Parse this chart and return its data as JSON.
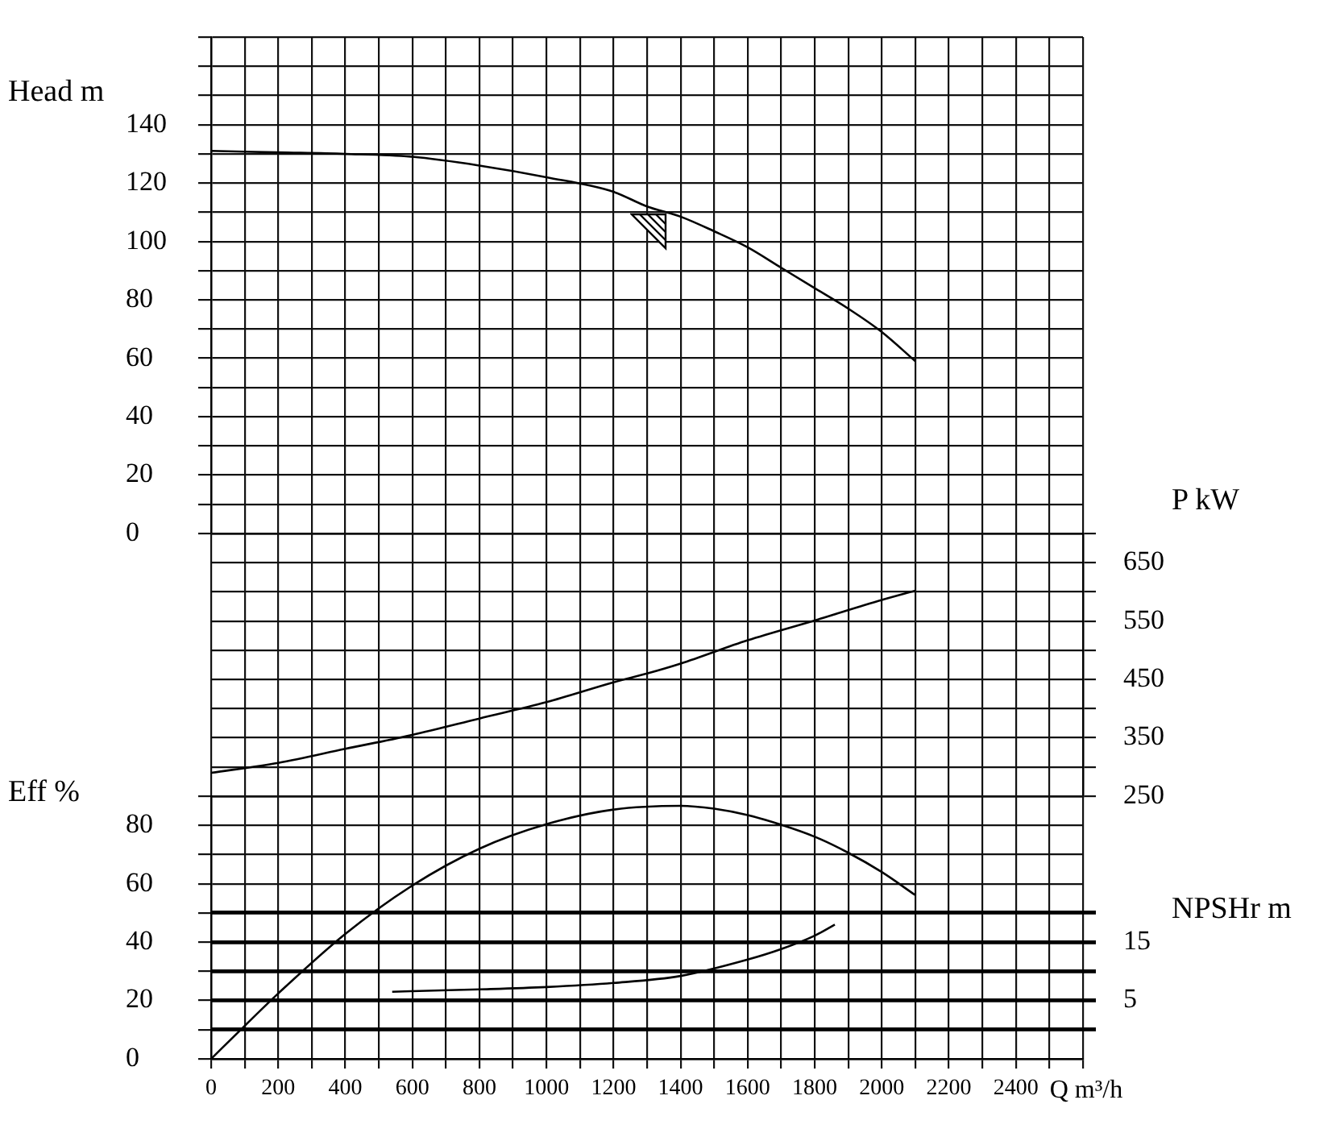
{
  "chart_data": [
    {
      "type": "line",
      "ylabel": "Head m",
      "xlim": [
        0,
        2600
      ],
      "xticks": [
        0,
        {
          "value": 100,
          "label": null
        },
        200,
        {
          "value": 300,
          "label": null
        },
        400,
        {
          "value": 500,
          "label": null
        },
        600,
        {
          "value": 700,
          "label": null
        },
        800,
        {
          "value": 900,
          "label": null
        },
        1000,
        {
          "value": 1100,
          "label": null
        },
        1200,
        {
          "value": 1300,
          "label": null
        },
        1400,
        {
          "value": 1500,
          "label": null
        },
        1600,
        {
          "value": 1700,
          "label": null
        },
        1800,
        {
          "value": 1900,
          "label": null
        },
        2000,
        {
          "value": 2100,
          "label": null
        },
        2200,
        {
          "value": 2300,
          "label": null
        },
        2400,
        {
          "value": 2500,
          "label": null
        },
        {
          "value": 2600,
          "label": null
        }
      ],
      "ylim": [
        0,
        170
      ],
      "yticks": [
        0,
        {
          "value": 10,
          "label": null
        },
        20,
        {
          "value": 30,
          "label": null
        },
        40,
        {
          "value": 50,
          "label": null
        },
        60,
        {
          "value": 70,
          "label": null
        },
        80,
        {
          "value": 90,
          "label": null
        },
        100,
        {
          "value": 110,
          "label": null
        },
        120,
        {
          "value": 130,
          "label": null
        },
        140,
        {
          "value": 150,
          "label": null
        },
        {
          "value": 160,
          "label": null
        },
        {
          "value": 170,
          "label": null
        }
      ],
      "series": [
        {
          "color": "#000000",
          "x": [
            0,
            200,
            400,
            600,
            800,
            1000,
            1200,
            1300,
            1400,
            1500,
            1600,
            1700,
            1800,
            1900,
            2000,
            2100
          ],
          "values": [
            131,
            130.5,
            130,
            129,
            126,
            122,
            117,
            112,
            108.5,
            103.5,
            98,
            91,
            84,
            77,
            69,
            59
          ]
        }
      ],
      "grid": true,
      "tick_labels": "y"
    },
    {
      "type": "line",
      "ylabel": "P kW",
      "xlim": [
        0,
        2600
      ],
      "xticks": [
        0,
        {
          "value": 100,
          "label": null
        },
        200,
        {
          "value": 300,
          "label": null
        },
        400,
        {
          "value": 500,
          "label": null
        },
        600,
        {
          "value": 700,
          "label": null
        },
        800,
        {
          "value": 900,
          "label": null
        },
        1000,
        {
          "value": 1100,
          "label": null
        },
        1200,
        {
          "value": 1300,
          "label": null
        },
        1400,
        {
          "value": 1500,
          "label": null
        },
        1600,
        {
          "value": 1700,
          "label": null
        },
        1800,
        {
          "value": 1900,
          "label": null
        },
        2000,
        {
          "value": 2100,
          "label": null
        },
        2200,
        {
          "value": 2300,
          "label": null
        },
        2400,
        {
          "value": 2500,
          "label": null
        },
        {
          "value": 2600,
          "label": null
        }
      ],
      "ylim": [
        250,
        700
      ],
      "yticks": [
        250,
        {
          "value": 300,
          "label": null
        },
        350,
        {
          "value": 400,
          "label": null
        },
        450,
        {
          "value": 500,
          "label": null
        },
        550,
        {
          "value": 600,
          "label": null
        },
        650,
        {
          "value": 700,
          "label": null
        }
      ],
      "series": [
        {
          "color": "#000000",
          "x": [
            0,
            200,
            400,
            600,
            800,
            1000,
            1200,
            1300,
            1400,
            1600,
            1800,
            2000,
            2100
          ],
          "values": [
            290,
            307,
            331,
            355,
            383,
            411,
            445,
            460,
            477,
            517,
            551,
            586,
            602
          ]
        }
      ],
      "grid": true,
      "tick_labels": "y"
    },
    {
      "type": "line",
      "ylabel": "Eff %",
      "y2label": "NPSHr m",
      "xlabel": "Q m³/h",
      "xlim": [
        0,
        2600
      ],
      "xticks": [
        0,
        {
          "value": 100,
          "label": null
        },
        200,
        {
          "value": 300,
          "label": null
        },
        400,
        {
          "value": 500,
          "label": null
        },
        600,
        {
          "value": 700,
          "label": null
        },
        800,
        {
          "value": 900,
          "label": null
        },
        1000,
        {
          "value": 1100,
          "label": null
        },
        1200,
        {
          "value": 1300,
          "label": null
        },
        1400,
        {
          "value": 1500,
          "label": null
        },
        1600,
        {
          "value": 1700,
          "label": null
        },
        1800,
        {
          "value": 1900,
          "label": null
        },
        2000,
        {
          "value": 2100,
          "label": null
        },
        2200,
        {
          "value": 2300,
          "label": null
        },
        2400,
        {
          "value": 2500,
          "label": null
        },
        {
          "value": 2600,
          "label": null
        }
      ],
      "ylim": [
        0,
        90
      ],
      "yticks": [
        0,
        {
          "value": 10,
          "label": null
        },
        20,
        {
          "value": 30,
          "label": null
        },
        40,
        {
          "value": 50,
          "label": null
        },
        60,
        {
          "value": 70,
          "label": null
        },
        80,
        {
          "value": 90,
          "label": null
        }
      ],
      "y2lim": [
        -5,
        40
      ],
      "y2ticks": [
        {
          "value": 0,
          "label": null
        },
        5,
        {
          "value": 10,
          "label": null
        },
        15,
        {
          "value": 20,
          "label": null
        }
      ],
      "series": [
        {
          "color": "#000000",
          "x": [
            0,
            100,
            200,
            400,
            600,
            800,
            1000,
            1200,
            1400,
            1500,
            1600,
            1700,
            1800,
            1900,
            2000,
            2100
          ],
          "values": [
            0,
            11.3,
            22.4,
            42.8,
            59.4,
            72,
            80.4,
            85.4,
            86.7,
            85.7,
            83.5,
            80.2,
            76.1,
            70.6,
            64,
            56.1
          ]
        },
        {
          "color": "#000000",
          "axis": "y2",
          "x": [
            540,
            600,
            800,
            1000,
            1200,
            1400,
            1600,
            1700,
            1800,
            1860
          ],
          "values": [
            6.5,
            6.6,
            6.9,
            7.3,
            8,
            9.2,
            12,
            13.8,
            16.1,
            18
          ]
        }
      ],
      "grid": true
    }
  ]
}
